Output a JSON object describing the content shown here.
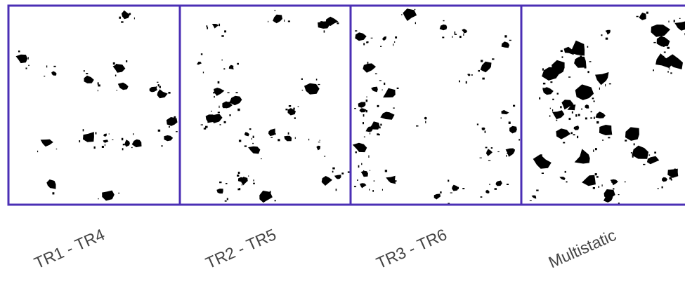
{
  "panels": [
    {
      "label": "TR1 - TR4"
    },
    {
      "label": "TR2 - TR5"
    },
    {
      "label": "TR3 - TR6"
    },
    {
      "label": "Multistatic"
    }
  ]
}
